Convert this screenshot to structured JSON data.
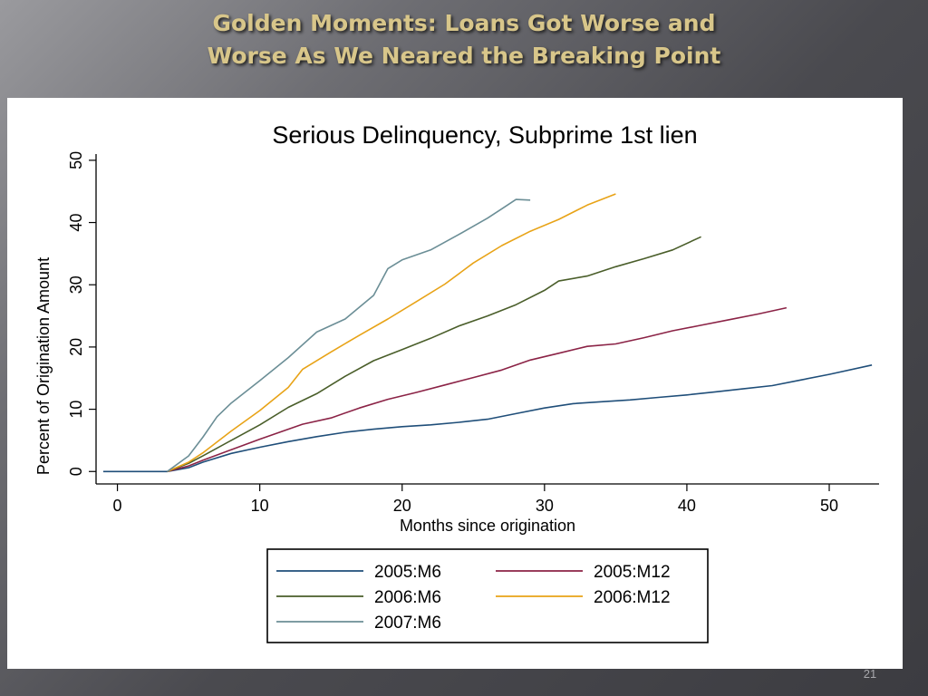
{
  "slide": {
    "title_line1": "Golden Moments: Loans Got Worse and",
    "title_line2": "Worse As We Neared the Breaking Point",
    "page_number": "21"
  },
  "chart_data": {
    "type": "line",
    "title": "Serious Delinquency, Subprime 1st lien",
    "xlabel": "Months since origination",
    "ylabel": "Percent of Origination Amount",
    "xlim": [
      -1.5,
      53.5
    ],
    "ylim": [
      -2,
      51
    ],
    "xticks": [
      0,
      10,
      20,
      30,
      40,
      50
    ],
    "yticks": [
      0,
      10,
      20,
      30,
      40,
      50
    ],
    "grid": false,
    "legend_position": "bottom",
    "series": [
      {
        "name": "2005:M6",
        "color": "#1f4e79",
        "x": [
          -1,
          3.5,
          5,
          6,
          8,
          10,
          12,
          14,
          16,
          18,
          20,
          22,
          24,
          26,
          28,
          30,
          32,
          34,
          36,
          38,
          40,
          42,
          44,
          46,
          48,
          50,
          53
        ],
        "y": [
          0,
          0,
          0.6,
          1.5,
          2.9,
          3.9,
          4.8,
          5.6,
          6.3,
          6.8,
          7.2,
          7.5,
          7.9,
          8.4,
          9.3,
          10.2,
          10.9,
          11.2,
          11.5,
          11.9,
          12.3,
          12.8,
          13.3,
          13.8,
          14.7,
          15.6,
          17.1
        ]
      },
      {
        "name": "2005:M12",
        "color": "#8b2346",
        "x": [
          3.5,
          5,
          6,
          8,
          10,
          12,
          13,
          15,
          17,
          19,
          21,
          23,
          25,
          27,
          29,
          31,
          33,
          35,
          37,
          39,
          41,
          43,
          45,
          47
        ],
        "y": [
          0,
          0.9,
          1.8,
          3.5,
          5.2,
          6.8,
          7.6,
          8.6,
          10.2,
          11.6,
          12.7,
          13.9,
          15.1,
          16.3,
          17.9,
          19.0,
          20.1,
          20.5,
          21.5,
          22.6,
          23.5,
          24.4,
          25.3,
          26.3
        ]
      },
      {
        "name": "2006:M6",
        "color": "#4a5e2a",
        "x": [
          3.5,
          5,
          6,
          8,
          10,
          12,
          14,
          16,
          18,
          20,
          22,
          24,
          26,
          28,
          30,
          31,
          33,
          35,
          37,
          39,
          41
        ],
        "y": [
          0,
          1.3,
          2.5,
          5.0,
          7.5,
          10.3,
          12.5,
          15.3,
          17.8,
          19.6,
          21.4,
          23.4,
          25.0,
          26.8,
          29.1,
          30.6,
          31.4,
          32.9,
          34.2,
          35.6,
          37.7
        ]
      },
      {
        "name": "2006:M12",
        "color": "#e8a317",
        "x": [
          3.5,
          5,
          6,
          8,
          10,
          12,
          13,
          15,
          17,
          19,
          21,
          23,
          25,
          27,
          29,
          31,
          33,
          35
        ],
        "y": [
          0,
          1.5,
          3.0,
          6.5,
          9.8,
          13.5,
          16.4,
          19.2,
          21.9,
          24.5,
          27.3,
          30.1,
          33.5,
          36.3,
          38.6,
          40.5,
          42.8,
          44.6
        ]
      },
      {
        "name": "2007:M6",
        "color": "#6b8e96",
        "x": [
          3.5,
          5,
          6,
          7,
          8,
          10,
          12,
          14,
          16,
          18,
          19,
          20,
          22,
          24,
          26,
          27,
          28,
          29
        ],
        "y": [
          0,
          2.5,
          5.5,
          8.8,
          11.0,
          14.6,
          18.3,
          22.4,
          24.5,
          28.3,
          32.6,
          34.0,
          35.6,
          38.1,
          40.7,
          42.2,
          43.7,
          43.6
        ]
      }
    ]
  }
}
